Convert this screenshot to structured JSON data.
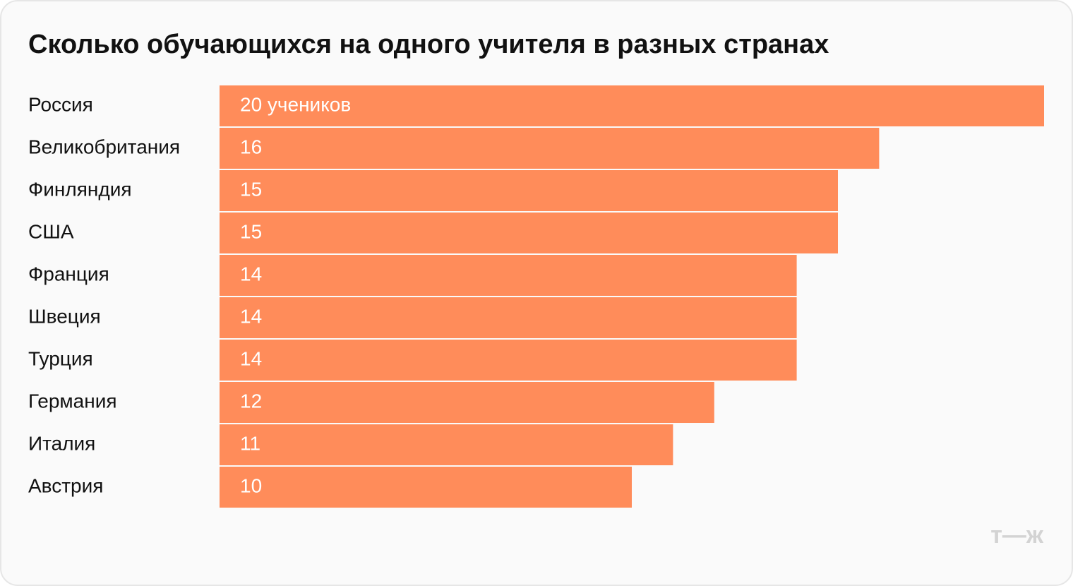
{
  "chart_data": {
    "type": "bar",
    "orientation": "horizontal",
    "title": "Сколько обучающихся на одного учителя в разных странах",
    "categories": [
      "Россия",
      "Великобритания",
      "Финляндия",
      "США",
      "Франция",
      "Швеция",
      "Турция",
      "Германия",
      "Италия",
      "Австрия"
    ],
    "values": [
      20,
      16,
      15,
      15,
      14,
      14,
      14,
      12,
      11,
      10
    ],
    "value_labels": [
      "20 учеников",
      "16",
      "15",
      "15",
      "14",
      "14",
      "14",
      "12",
      "11",
      "10"
    ],
    "color": "#ff8c5a",
    "xlim": [
      0,
      20
    ]
  },
  "logo": "т—ж"
}
